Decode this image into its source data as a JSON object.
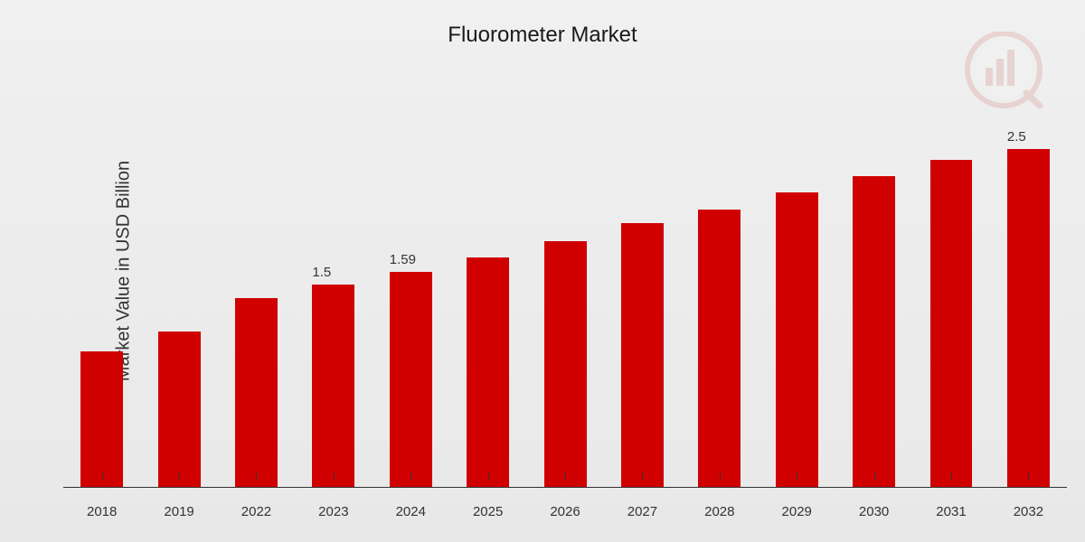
{
  "chart": {
    "type": "bar",
    "title": "Fluorometer Market",
    "ylabel": "Market Value in USD Billion",
    "title_fontsize": 24,
    "ylabel_fontsize": 20,
    "xlabel_fontsize": 15,
    "barlabel_fontsize": 15,
    "bar_color": "#d00000",
    "background_gradient_start": "#f0f0f0",
    "background_gradient_end": "#e8e8e8",
    "axis_color": "#333333",
    "text_color": "#333333",
    "bar_width_pct": 55,
    "ylim": [
      0,
      2.8
    ],
    "categories": [
      "2018",
      "2019",
      "2022",
      "2023",
      "2024",
      "2025",
      "2026",
      "2027",
      "2028",
      "2029",
      "2030",
      "2031",
      "2032"
    ],
    "values": [
      1.0,
      1.15,
      1.4,
      1.5,
      1.59,
      1.7,
      1.82,
      1.95,
      2.05,
      2.18,
      2.3,
      2.42,
      2.5
    ],
    "value_labels": [
      "",
      "",
      "",
      "1.5",
      "1.59",
      "",
      "",
      "",
      "",
      "",
      "",
      "",
      "2.5"
    ],
    "watermark": {
      "outer_color": "#c0392b",
      "inner_color": "#ffffff",
      "bar_color": "#c0392b",
      "opacity": 0.15
    }
  }
}
